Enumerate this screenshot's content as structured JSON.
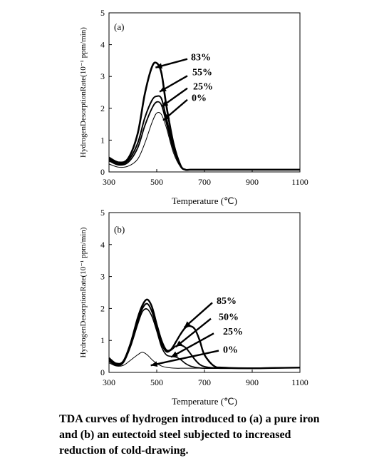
{
  "chart_data": [
    {
      "type": "line",
      "panel_label": "(a)",
      "xlabel": "Temperature (℃)",
      "ylabel": "HydrogenDesorptionRate(10⁻¹ ppm/min)",
      "xlim": [
        300,
        1100
      ],
      "ylim": [
        0,
        5
      ],
      "xticks": [
        "300",
        "500",
        "700",
        "900",
        "1100"
      ],
      "yticks": [
        "0",
        "1",
        "2",
        "3",
        "4",
        "5"
      ],
      "grid": false,
      "series": [
        {
          "name": "83%",
          "x": [
            300,
            340,
            380,
            420,
            450,
            480,
            500,
            520,
            540,
            570,
            600,
            620,
            640,
            700,
            800,
            900,
            1000,
            1100
          ],
          "y": [
            0.45,
            0.3,
            0.42,
            1.2,
            2.45,
            3.3,
            3.42,
            3.1,
            2.1,
            0.9,
            0.2,
            0.07,
            0.07,
            0.07,
            0.07,
            0.07,
            0.07,
            0.07
          ]
        },
        {
          "name": "55%",
          "x": [
            300,
            340,
            380,
            420,
            450,
            480,
            500,
            520,
            540,
            570,
            600,
            620,
            640,
            700,
            800,
            900,
            1000,
            1100
          ],
          "y": [
            0.4,
            0.25,
            0.36,
            0.9,
            1.7,
            2.25,
            2.38,
            2.3,
            1.7,
            0.8,
            0.2,
            0.07,
            0.07,
            0.07,
            0.07,
            0.07,
            0.07,
            0.07
          ]
        },
        {
          "name": "25%",
          "x": [
            300,
            340,
            380,
            420,
            450,
            480,
            500,
            520,
            540,
            570,
            600,
            620,
            640,
            700,
            800,
            900,
            1000,
            1100
          ],
          "y": [
            0.35,
            0.22,
            0.3,
            0.75,
            1.45,
            2.0,
            2.2,
            2.1,
            1.55,
            0.7,
            0.18,
            0.07,
            0.07,
            0.07,
            0.07,
            0.07,
            0.07,
            0.07
          ]
        },
        {
          "name": "0%",
          "x": [
            300,
            340,
            380,
            420,
            450,
            480,
            500,
            520,
            540,
            570,
            600,
            620,
            640,
            700,
            800,
            900,
            1000,
            1100
          ],
          "y": [
            0.25,
            0.15,
            0.18,
            0.4,
            0.9,
            1.55,
            1.85,
            1.8,
            1.4,
            0.6,
            0.15,
            0.07,
            0.07,
            0.07,
            0.07,
            0.07,
            0.07,
            0.07
          ]
        }
      ],
      "annotations": [
        "83%",
        "55%",
        "25%",
        "0%"
      ]
    },
    {
      "type": "line",
      "panel_label": "(b)",
      "xlabel": "Temperature (℃)",
      "ylabel": "HydrogenDesorptionRate(10⁻¹ ppm/min)",
      "xlim": [
        300,
        1100
      ],
      "ylim": [
        0,
        5
      ],
      "xticks": [
        "300",
        "500",
        "700",
        "900",
        "1100"
      ],
      "yticks": [
        "0",
        "1",
        "2",
        "3",
        "4",
        "5"
      ],
      "grid": false,
      "series": [
        {
          "name": "85%",
          "x": [
            300,
            330,
            360,
            390,
            420,
            440,
            460,
            480,
            500,
            520,
            540,
            560,
            580,
            600,
            620,
            640,
            660,
            680,
            700,
            740,
            780,
            900,
            1000,
            1100
          ],
          "y": [
            0.45,
            0.28,
            0.35,
            0.9,
            1.7,
            2.1,
            2.28,
            2.05,
            1.5,
            1.0,
            0.7,
            0.72,
            0.95,
            1.2,
            1.4,
            1.45,
            1.35,
            1.0,
            0.55,
            0.2,
            0.15,
            0.13,
            0.14,
            0.15
          ]
        },
        {
          "name": "50%",
          "x": [
            300,
            330,
            360,
            390,
            420,
            440,
            460,
            480,
            500,
            520,
            540,
            560,
            580,
            600,
            620,
            640,
            660,
            680,
            700,
            740,
            780,
            900,
            1000,
            1100
          ],
          "y": [
            0.4,
            0.25,
            0.32,
            0.85,
            1.6,
            2.0,
            2.15,
            1.9,
            1.4,
            0.9,
            0.65,
            0.7,
            0.82,
            0.85,
            0.78,
            0.6,
            0.4,
            0.25,
            0.18,
            0.14,
            0.13,
            0.13,
            0.14,
            0.15
          ]
        },
        {
          "name": "25%",
          "x": [
            300,
            330,
            360,
            390,
            420,
            440,
            460,
            480,
            500,
            520,
            540,
            560,
            580,
            600,
            620,
            640,
            660,
            680,
            700,
            740,
            780,
            900,
            1000,
            1100
          ],
          "y": [
            0.35,
            0.22,
            0.3,
            0.8,
            1.5,
            1.9,
            1.98,
            1.75,
            1.3,
            0.8,
            0.55,
            0.5,
            0.48,
            0.4,
            0.28,
            0.2,
            0.16,
            0.14,
            0.13,
            0.13,
            0.13,
            0.13,
            0.14,
            0.15
          ]
        },
        {
          "name": "0%",
          "x": [
            300,
            330,
            360,
            390,
            420,
            440,
            460,
            480,
            500,
            520,
            540,
            560,
            580,
            600,
            620,
            640,
            660,
            680,
            700,
            740,
            780,
            900,
            1000,
            1100
          ],
          "y": [
            0.3,
            0.2,
            0.22,
            0.38,
            0.55,
            0.63,
            0.55,
            0.4,
            0.28,
            0.2,
            0.16,
            0.14,
            0.13,
            0.13,
            0.13,
            0.13,
            0.13,
            0.13,
            0.13,
            0.13,
            0.13,
            0.13,
            0.14,
            0.15
          ]
        }
      ],
      "annotations": [
        "85%",
        "50%",
        "25%",
        "0%"
      ]
    }
  ],
  "caption": {
    "line1": "TDA curves of hydrogen introduced to (a) a pure iron",
    "line2": "and (b) an eutectoid steel subjected to increased",
    "line3": "reduction of cold-drawing."
  }
}
